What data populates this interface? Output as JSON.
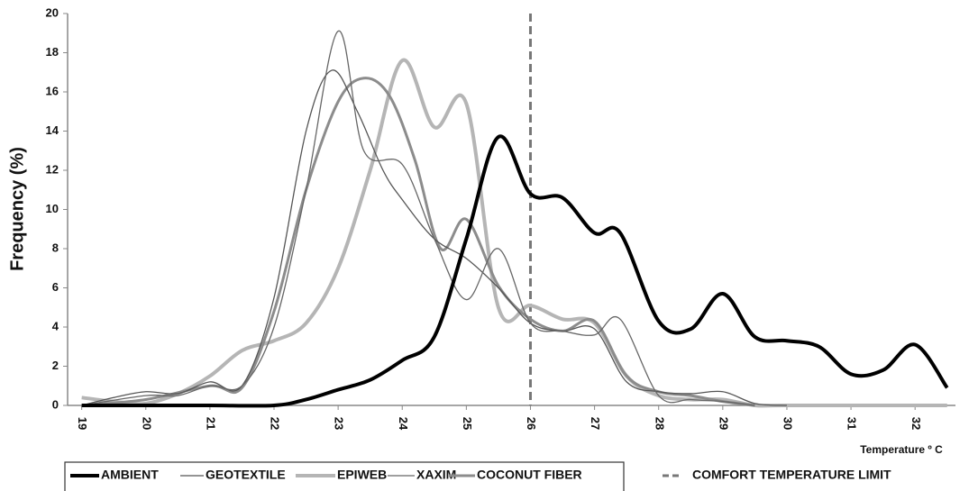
{
  "chart_data": {
    "type": "line",
    "y_label": "Frequency (%)",
    "x_label": "Temperature º C",
    "xlim": [
      18.78,
      32.63
    ],
    "ylim": [
      0,
      20
    ],
    "xticks": [
      19,
      20,
      21,
      22,
      23,
      24,
      25,
      26,
      27,
      28,
      29,
      30,
      31,
      32
    ],
    "yticks": [
      0,
      2,
      4,
      6,
      8,
      10,
      12,
      14,
      16,
      18,
      20
    ],
    "reference_line": {
      "x": 26,
      "label": "COMFORT TEMPERATURE LIMIT",
      "color": "#777777"
    },
    "series": [
      {
        "name": "AMBIENT",
        "color": "#000000",
        "width": 4,
        "x": [
          19,
          20,
          21,
          22,
          22.5,
          23,
          23.5,
          24,
          24.5,
          25,
          25.5,
          26,
          26.5,
          27,
          27.4,
          28,
          28.5,
          29,
          29.5,
          30,
          30.5,
          31,
          31.5,
          32,
          32.5
        ],
        "values": [
          0,
          0,
          0,
          0,
          0.3,
          0.8,
          1.3,
          2.3,
          3.5,
          8.5,
          13.7,
          10.8,
          10.6,
          8.8,
          8.8,
          4.3,
          3.9,
          5.7,
          3.5,
          3.3,
          3.0,
          1.6,
          1.8,
          3.1,
          0.9
        ]
      },
      {
        "name": "GEOTEXTILE",
        "color": "#555555",
        "width": 1.3,
        "x": [
          19,
          19.5,
          20,
          20.5,
          21,
          21.5,
          22,
          22.5,
          22.9,
          23.3,
          23.7,
          24,
          24.5,
          25,
          25.5,
          26,
          26.5,
          27,
          27.5,
          28,
          28.5,
          29,
          29.5,
          30
        ],
        "values": [
          0,
          0.4,
          0.7,
          0.6,
          1.2,
          1.0,
          5.5,
          14,
          17.1,
          15,
          12,
          10.5,
          8.5,
          7.5,
          6,
          4.2,
          3.8,
          3.9,
          1.2,
          0.7,
          0.6,
          0.7,
          0.1,
          0
        ]
      },
      {
        "name": "EPIWEB",
        "color": "#b5b5b5",
        "width": 4,
        "x": [
          19,
          19.5,
          20,
          20.5,
          21,
          21.5,
          22,
          22.5,
          23,
          23.5,
          24,
          24.5,
          25,
          25.5,
          26,
          26.5,
          27,
          27.5,
          28,
          28.5,
          29,
          29.5,
          30,
          32.5
        ],
        "values": [
          0.4,
          0.2,
          0.1,
          0.6,
          1.5,
          2.8,
          3.3,
          4.2,
          7,
          12,
          17.6,
          14.2,
          15.4,
          5,
          5.1,
          4.4,
          4.2,
          1.5,
          0.5,
          0.3,
          0.3,
          0,
          0,
          0
        ]
      },
      {
        "name": "XAXIM",
        "color": "#666666",
        "width": 1.3,
        "x": [
          19,
          20,
          20.5,
          21,
          21.5,
          22,
          22.5,
          23,
          23.4,
          24,
          24.5,
          25,
          25.5,
          26,
          26.5,
          27,
          27.4,
          28,
          28.5,
          29,
          29.5
        ],
        "values": [
          0,
          0.5,
          0.5,
          1.0,
          1.0,
          4,
          11,
          19.1,
          13,
          12.3,
          8.5,
          5.4,
          8,
          4.2,
          3.8,
          3.6,
          4.4,
          0.5,
          0.3,
          0.2,
          0
        ]
      },
      {
        "name": "COCONUT FIBER",
        "color": "#8c8c8c",
        "width": 3,
        "x": [
          19,
          20,
          21,
          21.5,
          22,
          22.5,
          23,
          23.4,
          23.8,
          24.2,
          24.6,
          25,
          25.5,
          26,
          26.5,
          27,
          27.5,
          28,
          28.5,
          29,
          29.5
        ],
        "values": [
          0,
          0.3,
          1.0,
          0.9,
          4.8,
          11,
          15.5,
          16.7,
          15.8,
          12.5,
          8,
          9.5,
          6.1,
          4.4,
          3.8,
          4.3,
          1.5,
          0.7,
          0.5,
          0.2,
          0
        ]
      }
    ]
  }
}
